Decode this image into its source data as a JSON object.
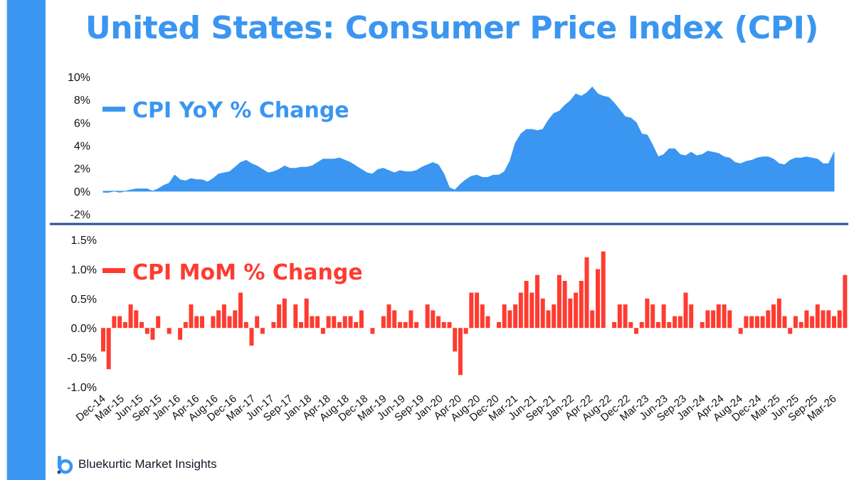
{
  "title": "United States: Consumer Price Index (CPI)",
  "brand": {
    "name": "Bluekurtic Market Insights"
  },
  "colors": {
    "yoy": "#3a96f0",
    "mom": "#ff3b30",
    "divider": "#1f4e96",
    "sidebar": "#3a96f0"
  },
  "chart_data": [
    {
      "type": "area",
      "title": "CPI YoY % Change",
      "legend": "CPI YoY % Change",
      "ylim": [
        -2,
        10
      ],
      "yticks": [
        "-2%",
        "0%",
        "2%",
        "4%",
        "6%",
        "8%",
        "10%"
      ],
      "start": "Dec-14",
      "values": [
        -0.1,
        -0.1,
        0.0,
        -0.1,
        -0.0,
        0.1,
        0.2,
        0.2,
        0.2,
        0.0,
        0.2,
        0.5,
        0.7,
        1.4,
        1.0,
        0.9,
        1.1,
        1.0,
        1.0,
        0.8,
        1.1,
        1.5,
        1.6,
        1.7,
        2.1,
        2.5,
        2.7,
        2.4,
        2.2,
        1.9,
        1.6,
        1.7,
        1.9,
        2.2,
        2.0,
        2.0,
        2.1,
        2.1,
        2.2,
        2.5,
        2.8,
        2.8,
        2.8,
        2.9,
        2.7,
        2.5,
        2.2,
        1.9,
        1.6,
        1.5,
        1.9,
        2.0,
        1.8,
        1.6,
        1.8,
        1.7,
        1.7,
        1.8,
        2.1,
        2.3,
        2.5,
        2.3,
        1.5,
        0.3,
        0.1,
        0.6,
        1.0,
        1.3,
        1.4,
        1.2,
        1.2,
        1.4,
        1.4,
        1.7,
        2.6,
        4.2,
        5.0,
        5.4,
        5.4,
        5.3,
        5.4,
        6.2,
        6.8,
        7.0,
        7.5,
        7.9,
        8.5,
        8.3,
        8.6,
        9.1,
        8.5,
        8.3,
        8.2,
        7.7,
        7.1,
        6.5,
        6.4,
        6.0,
        5.0,
        4.9,
        4.0,
        3.0,
        3.2,
        3.7,
        3.7,
        3.2,
        3.1,
        3.4,
        3.1,
        3.2,
        3.5,
        3.4,
        3.3,
        3.0,
        2.9,
        2.5,
        2.4,
        2.6,
        2.7,
        2.9,
        3.0,
        3.0,
        2.8,
        2.4,
        2.3,
        2.7,
        2.9,
        2.9,
        3.0,
        2.9,
        2.8,
        2.4,
        2.4,
        3.4
      ],
      "xlabels": [
        "Dec-14",
        "Mar-15",
        "Jun-15",
        "Sep-15",
        "Jan-16",
        "Apr-16",
        "Aug-16",
        "Dec-16",
        "Mar-17",
        "Jun-17",
        "Sep-17",
        "Jan-18",
        "Apr-18",
        "Aug-18",
        "Dec-18",
        "Mar-19",
        "Jun-19",
        "Sep-19",
        "Jan-20",
        "Apr-20",
        "Aug-20",
        "Dec-20",
        "Mar-21",
        "Jun-21",
        "Sep-21",
        "Jan-22",
        "Apr-22",
        "Aug-22",
        "Dec-22",
        "Mar-23",
        "Jun-23",
        "Sep-23",
        "Jan-24",
        "Apr-24",
        "Aug-24",
        "Dec-24",
        "Mar-25",
        "Jun-25",
        "Sep-25",
        "Mar-26"
      ]
    },
    {
      "type": "bar",
      "title": "CPI MoM % Change",
      "legend": "CPI MoM % Change",
      "ylim": [
        -1.0,
        1.5
      ],
      "yticks": [
        "-1.0%",
        "-0.5%",
        "0.0%",
        "0.5%",
        "1.0%",
        "1.5%"
      ],
      "start": "Dec-14",
      "values": [
        -0.4,
        -0.7,
        0.2,
        0.2,
        0.1,
        0.4,
        0.3,
        0.1,
        -0.1,
        -0.2,
        0.2,
        0.0,
        -0.1,
        0.0,
        -0.2,
        0.1,
        0.4,
        0.2,
        0.2,
        0.0,
        0.2,
        0.3,
        0.4,
        0.2,
        0.3,
        0.6,
        0.1,
        -0.3,
        0.2,
        -0.1,
        0.0,
        0.1,
        0.4,
        0.5,
        0.0,
        0.4,
        0.1,
        0.5,
        0.2,
        0.2,
        -0.1,
        0.2,
        0.2,
        0.1,
        0.2,
        0.2,
        0.1,
        0.3,
        0.0,
        -0.1,
        0.0,
        0.2,
        0.4,
        0.3,
        0.1,
        0.1,
        0.3,
        0.1,
        0.0,
        0.4,
        0.3,
        0.2,
        0.1,
        0.1,
        -0.4,
        -0.8,
        -0.1,
        0.6,
        0.6,
        0.4,
        0.2,
        0.0,
        0.1,
        0.4,
        0.3,
        0.4,
        0.6,
        0.8,
        0.6,
        0.9,
        0.5,
        0.3,
        0.4,
        0.9,
        0.8,
        0.5,
        0.6,
        0.8,
        1.2,
        0.3,
        1.0,
        1.3,
        0.0,
        0.1,
        0.4,
        0.4,
        0.1,
        -0.1,
        0.1,
        0.5,
        0.4,
        0.1,
        0.4,
        0.1,
        0.2,
        0.2,
        0.6,
        0.4,
        0.0,
        0.1,
        0.3,
        0.3,
        0.4,
        0.4,
        0.3,
        0.0,
        -0.1,
        0.2,
        0.2,
        0.2,
        0.2,
        0.3,
        0.4,
        0.5,
        0.2,
        -0.1,
        0.2,
        0.1,
        0.3,
        0.2,
        0.4,
        0.3,
        0.3,
        0.2,
        0.3,
        0.9
      ],
      "xlabels": []
    }
  ]
}
